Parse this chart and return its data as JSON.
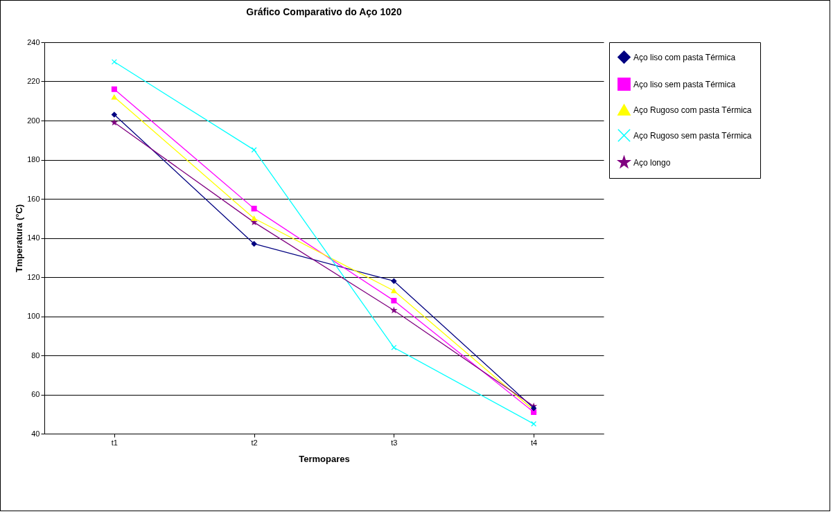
{
  "chart_data": {
    "type": "line",
    "title": "Gráfico Comparativo do Aço 1020",
    "xlabel": "Termopares",
    "ylabel": "Tmperatura (°C)",
    "categories": [
      "t1",
      "t2",
      "t3",
      "t4"
    ],
    "series": [
      {
        "name": "Aço liso com pasta Térmica",
        "color": "#000080",
        "marker": "diamond",
        "values": [
          203,
          137,
          118,
          53
        ]
      },
      {
        "name": "Aço liso sem pasta Térmica",
        "color": "#ff00ff",
        "marker": "square",
        "values": [
          216,
          155,
          108,
          51
        ]
      },
      {
        "name": "Aço Rugoso com pasta Térmica",
        "color": "#ffff00",
        "marker": "triangle",
        "values": [
          212,
          150,
          113,
          52
        ]
      },
      {
        "name": "Aço Rugoso sem pasta Térmica",
        "color": "#00ffff",
        "marker": "cross",
        "values": [
          230,
          185,
          84,
          45
        ]
      },
      {
        "name": "Aço longo",
        "color": "#800080",
        "marker": "star",
        "values": [
          199,
          148,
          103,
          54
        ]
      }
    ],
    "ylim": [
      40,
      240
    ],
    "yticks": [
      40,
      60,
      80,
      100,
      120,
      140,
      160,
      180,
      200,
      220,
      240
    ],
    "grid": "y",
    "legend": "right"
  }
}
